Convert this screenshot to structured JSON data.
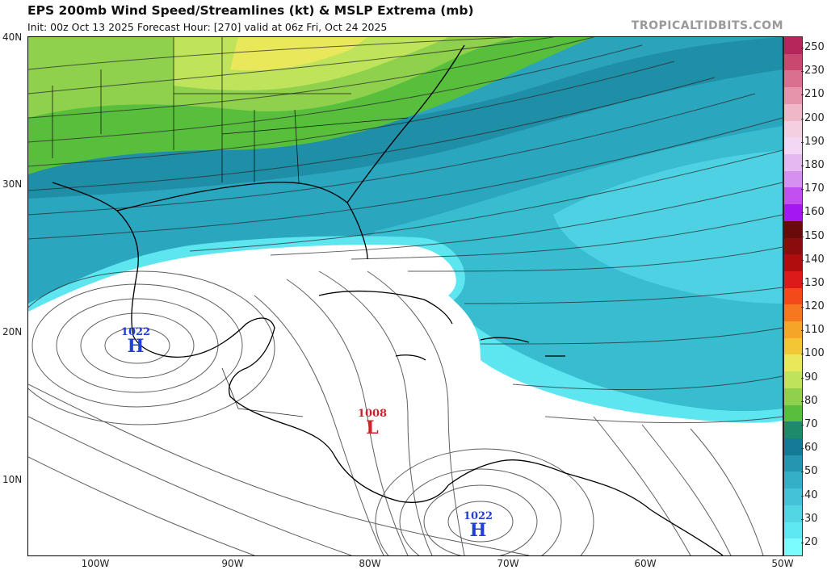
{
  "header": {
    "title": "EPS 200mb Wind Speed/Streamlines (kt) & MSLP Extrema (mb)",
    "subtitle": "Init: 00z Oct 13 2025   Forecast Hour: [270]   valid at 06z Fri, Oct 24 2025",
    "credit": "TROPICALTIDBITS.COM"
  },
  "map": {
    "latitude_labels": [
      "40N",
      "30N",
      "20N",
      "10N"
    ],
    "longitude_labels": [
      "100W",
      "90W",
      "80W",
      "70W",
      "60W",
      "50W"
    ],
    "pressure_centers": [
      {
        "type": "H",
        "value": "1022",
        "color": "#1f3fd6"
      },
      {
        "type": "L",
        "value": "1008",
        "color": "#d0202a"
      },
      {
        "type": "H",
        "value": "1022",
        "color": "#1f3fd6"
      }
    ]
  },
  "colorbar": {
    "labels": [
      "250",
      "230",
      "210",
      "200",
      "190",
      "180",
      "170",
      "160",
      "150",
      "140",
      "130",
      "120",
      "110",
      "100",
      "90",
      "80",
      "70",
      "60",
      "50",
      "40",
      "30",
      "20"
    ],
    "colors": [
      "#b5275a",
      "#c8486f",
      "#d9708f",
      "#e594ac",
      "#efb8c8",
      "#f4cfe0",
      "#f2d8f4",
      "#e6b8f2",
      "#d690f0",
      "#c24ff0",
      "#a417f0",
      "#6a0a0a",
      "#8a0c0c",
      "#b00e0e",
      "#dd1a1a",
      "#f44a1a",
      "#f5781e",
      "#f5a628",
      "#f2c634",
      "#e8e85a",
      "#bfe35a",
      "#8fd14c",
      "#58bf3c",
      "#1e8a6a",
      "#157a96",
      "#2596b2",
      "#35aec8",
      "#44c2d8",
      "#52d6e6",
      "#5ee8f2",
      "#7afcfc"
    ]
  }
}
